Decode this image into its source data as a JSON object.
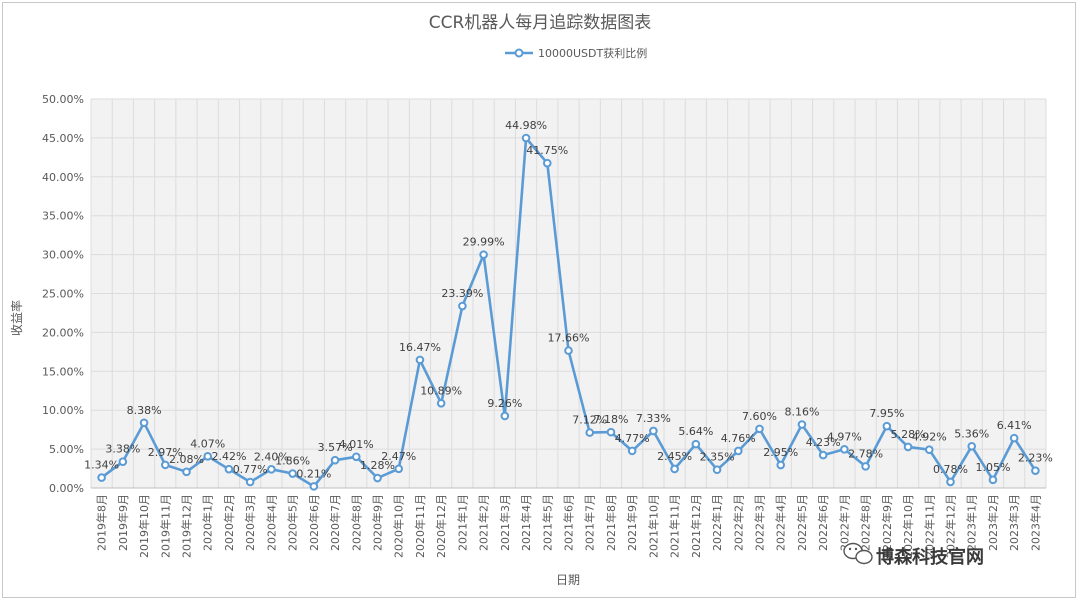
{
  "chart_data": {
    "type": "line",
    "title": "CCR机器人每月追踪数据图表",
    "xlabel": "日期",
    "ylabel": "收益率",
    "ylim": [
      0,
      50
    ],
    "y_ticks": [
      "0.00%",
      "5.00%",
      "10.00%",
      "15.00%",
      "20.00%",
      "25.00%",
      "30.00%",
      "35.00%",
      "40.00%",
      "45.00%",
      "50.00%"
    ],
    "grid": true,
    "legend_position": "top-center",
    "color": "#5b9bd5",
    "categories": [
      "2019年8月",
      "2019年9月",
      "2019年10月",
      "2019年11月",
      "2019年12月",
      "2020年1月",
      "2020年2月",
      "2020年3月",
      "2020年4月",
      "2020年5月",
      "2020年6月",
      "2020年7月",
      "2020年8月",
      "2020年9月",
      "2020年10月",
      "2020年11月",
      "2020年12月",
      "2021年1月",
      "2021年2月",
      "2021年3月",
      "2021年4月",
      "2021年5月",
      "2021年6月",
      "2021年7月",
      "2021年8月",
      "2021年9月",
      "2021年10月",
      "2021年11月",
      "2021年12月",
      "2022年1月",
      "2022年2月",
      "2022年3月",
      "2022年4月",
      "2022年5月",
      "2022年6月",
      "2022年7月",
      "2022年8月",
      "2022年9月",
      "2022年10月",
      "2022年11月",
      "2022年12月",
      "2023年1月",
      "2023年2月",
      "2023年3月",
      "2023年4月"
    ],
    "series": [
      {
        "name": "10000USDT获利比例",
        "values": [
          1.34,
          3.38,
          8.38,
          2.97,
          2.08,
          4.07,
          2.42,
          0.77,
          2.4,
          1.86,
          0.21,
          3.57,
          4.01,
          1.28,
          2.47,
          16.47,
          10.89,
          23.39,
          29.99,
          9.26,
          44.98,
          41.75,
          17.66,
          7.12,
          7.18,
          4.77,
          7.33,
          2.45,
          5.64,
          2.35,
          4.76,
          7.6,
          2.95,
          8.16,
          4.23,
          4.97,
          2.78,
          7.95,
          5.28,
          4.92,
          0.78,
          5.36,
          1.05,
          6.41,
          2.23
        ],
        "labels": [
          "1.34%",
          "3.38%",
          "8.38%",
          "2.97%",
          "2.08%",
          "4.07%",
          "2.42%",
          "0.77%",
          "2.40%",
          "1.86%",
          "0.21%",
          "3.57%",
          "4.01%",
          "1.28%",
          "2.47%",
          "16.47%",
          "10.89%",
          "23.39%",
          "29.99%",
          "9.26%",
          "44.98%",
          "41.75%",
          "17.66%",
          "7.12%",
          "7.18%",
          "4.77%",
          "7.33%",
          "2.45%",
          "5.64%",
          "2.35%",
          "4.76%",
          "7.60%",
          "2.95%",
          "8.16%",
          "4.23%",
          "4.97%",
          "2.78%",
          "7.95%",
          "5.28%",
          "4.92%",
          "0.78%",
          "5.36%",
          "1.05%",
          "6.41%",
          "2.23%"
        ]
      }
    ]
  },
  "watermark": {
    "text": "博森科技官网",
    "icon": "wechat-icon"
  }
}
